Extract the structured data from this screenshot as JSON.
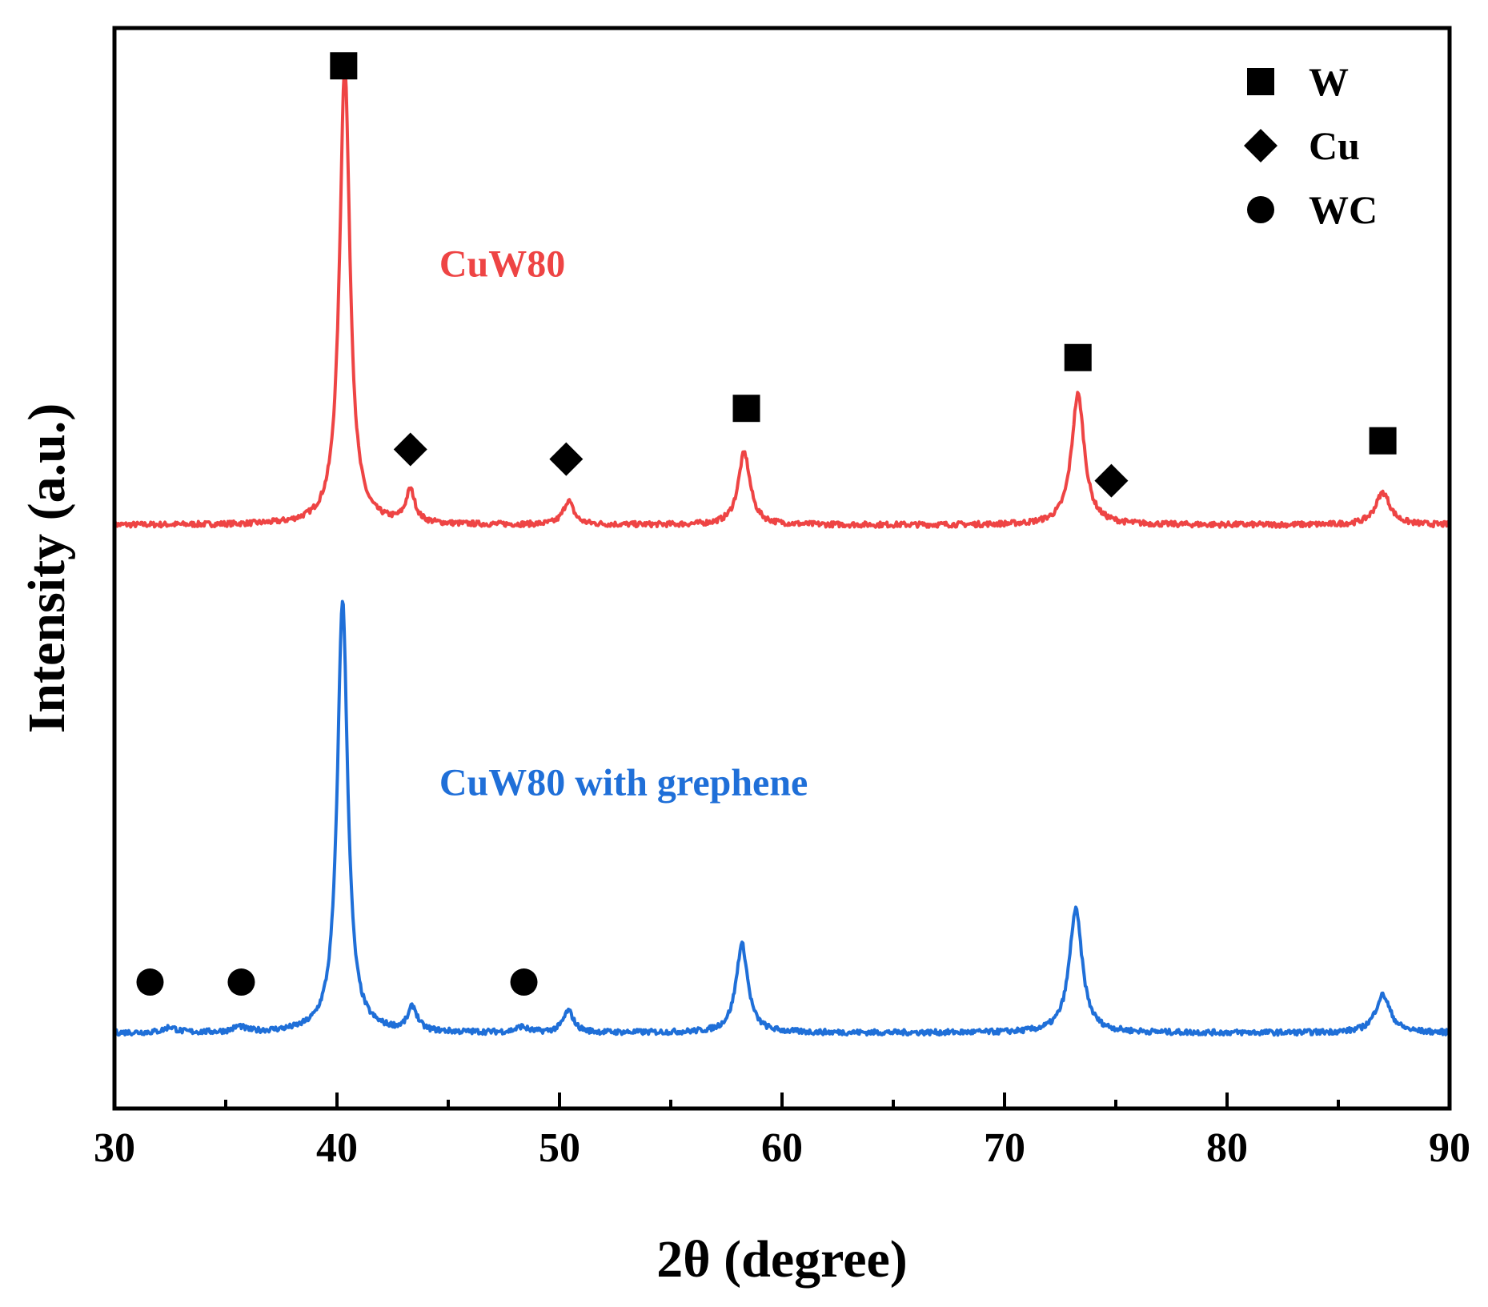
{
  "chart_data": {
    "type": "line",
    "title": "",
    "xlabel": "2θ (degree)",
    "ylabel": "Intensity (a.u.)",
    "xlim": [
      30,
      90
    ],
    "xticks": [
      30,
      40,
      50,
      60,
      70,
      80,
      90
    ],
    "minor_xticks": [
      35,
      45,
      55,
      65,
      75,
      85
    ],
    "ylim": [
      0,
      100
    ],
    "yticks_shown": false,
    "grid": false,
    "series": [
      {
        "name": "CuW80",
        "color": "#ee4444",
        "label_anchor": [
          44.6,
          77
        ],
        "baseline": 54,
        "peaks": [
          {
            "x": 40.35,
            "h": 42.5,
            "w": 0.28
          },
          {
            "x": 43.3,
            "h": 3.0,
            "w": 0.25
          },
          {
            "x": 50.4,
            "h": 2.2,
            "w": 0.28
          },
          {
            "x": 58.3,
            "h": 6.7,
            "w": 0.32
          },
          {
            "x": 73.3,
            "h": 12.1,
            "w": 0.35
          },
          {
            "x": 87.0,
            "h": 3.0,
            "w": 0.4
          }
        ]
      },
      {
        "name": "CuW80 with grephene",
        "color": "#1f6fd8",
        "label_anchor": [
          44.6,
          29
        ],
        "baseline": 7,
        "peaks": [
          {
            "x": 32.5,
            "h": 0.5,
            "w": 0.3
          },
          {
            "x": 35.6,
            "h": 0.5,
            "w": 0.3
          },
          {
            "x": 40.25,
            "h": 40.1,
            "w": 0.28
          },
          {
            "x": 43.4,
            "h": 2.2,
            "w": 0.25
          },
          {
            "x": 48.3,
            "h": 0.5,
            "w": 0.3
          },
          {
            "x": 50.4,
            "h": 2.0,
            "w": 0.28
          },
          {
            "x": 58.2,
            "h": 8.2,
            "w": 0.32
          },
          {
            "x": 73.2,
            "h": 11.4,
            "w": 0.35
          },
          {
            "x": 87.0,
            "h": 3.5,
            "w": 0.4
          }
        ]
      }
    ],
    "phase_markers": [
      {
        "phase": "W",
        "shape": "square",
        "x": 40.3,
        "y": 96.5
      },
      {
        "phase": "W",
        "shape": "square",
        "x": 58.4,
        "y": 64.8
      },
      {
        "phase": "W",
        "shape": "square",
        "x": 73.3,
        "y": 69.5
      },
      {
        "phase": "W",
        "shape": "square",
        "x": 87.0,
        "y": 61.8
      },
      {
        "phase": "Cu",
        "shape": "diamond",
        "x": 43.3,
        "y": 61.0
      },
      {
        "phase": "Cu",
        "shape": "diamond",
        "x": 50.3,
        "y": 60.1
      },
      {
        "phase": "Cu",
        "shape": "diamond",
        "x": 74.8,
        "y": 58.1
      },
      {
        "phase": "WC",
        "shape": "circle",
        "x": 31.6,
        "y": 11.7
      },
      {
        "phase": "WC",
        "shape": "circle",
        "x": 35.7,
        "y": 11.7
      },
      {
        "phase": "WC",
        "shape": "circle",
        "x": 48.4,
        "y": 11.7
      }
    ],
    "legend": {
      "position": "top-right",
      "entries": [
        {
          "label": "W",
          "shape": "square"
        },
        {
          "label": "Cu",
          "shape": "diamond"
        },
        {
          "label": "WC",
          "shape": "circle"
        }
      ]
    }
  }
}
